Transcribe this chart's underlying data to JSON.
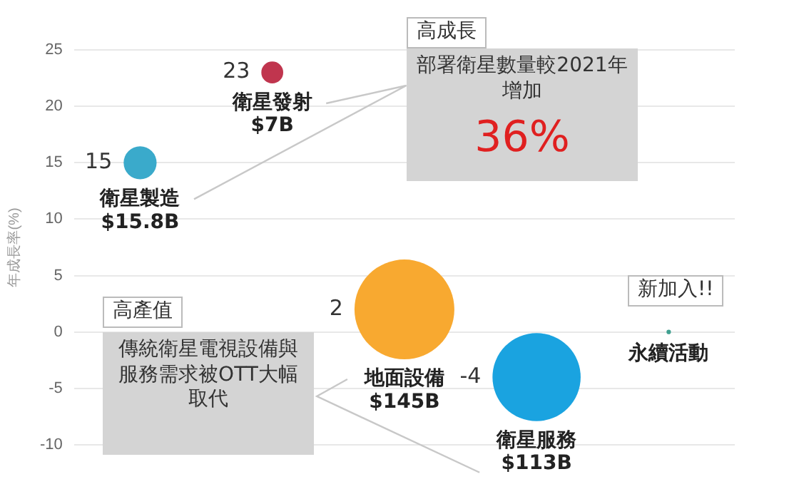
{
  "chart_data": {
    "type": "bubble",
    "ylabel": "年成長率(%)",
    "categories": [
      "衛星製造",
      "衛星發射",
      "地面設備",
      "衛星服務",
      "永續活動"
    ],
    "values": [
      15,
      23,
      2,
      -4,
      0
    ],
    "value_labels": [
      "15",
      "23",
      "2",
      "-4",
      null
    ],
    "sizes": [
      0.109,
      0.048,
      1,
      0.779,
      0.002
    ],
    "colors": [
      "#3aaacb",
      "#c0354e",
      "#f8a930",
      "#1aa3e0",
      "#40a090"
    ],
    "ylim": [
      -10,
      25
    ],
    "yticks": [
      -10,
      -5,
      0,
      5,
      10,
      15,
      20,
      25
    ],
    "grid": "y",
    "legend": false,
    "tick_labels": "y",
    "annotations": [
      "高成長",
      "部署衛星數量較2021年增加",
      "36%",
      "高產值",
      "傳統衛星電視設備與服務需求被OTT大幅取代",
      "新加入!!",
      "$15.8B",
      "$7B",
      "$145B",
      "$113B"
    ]
  }
}
